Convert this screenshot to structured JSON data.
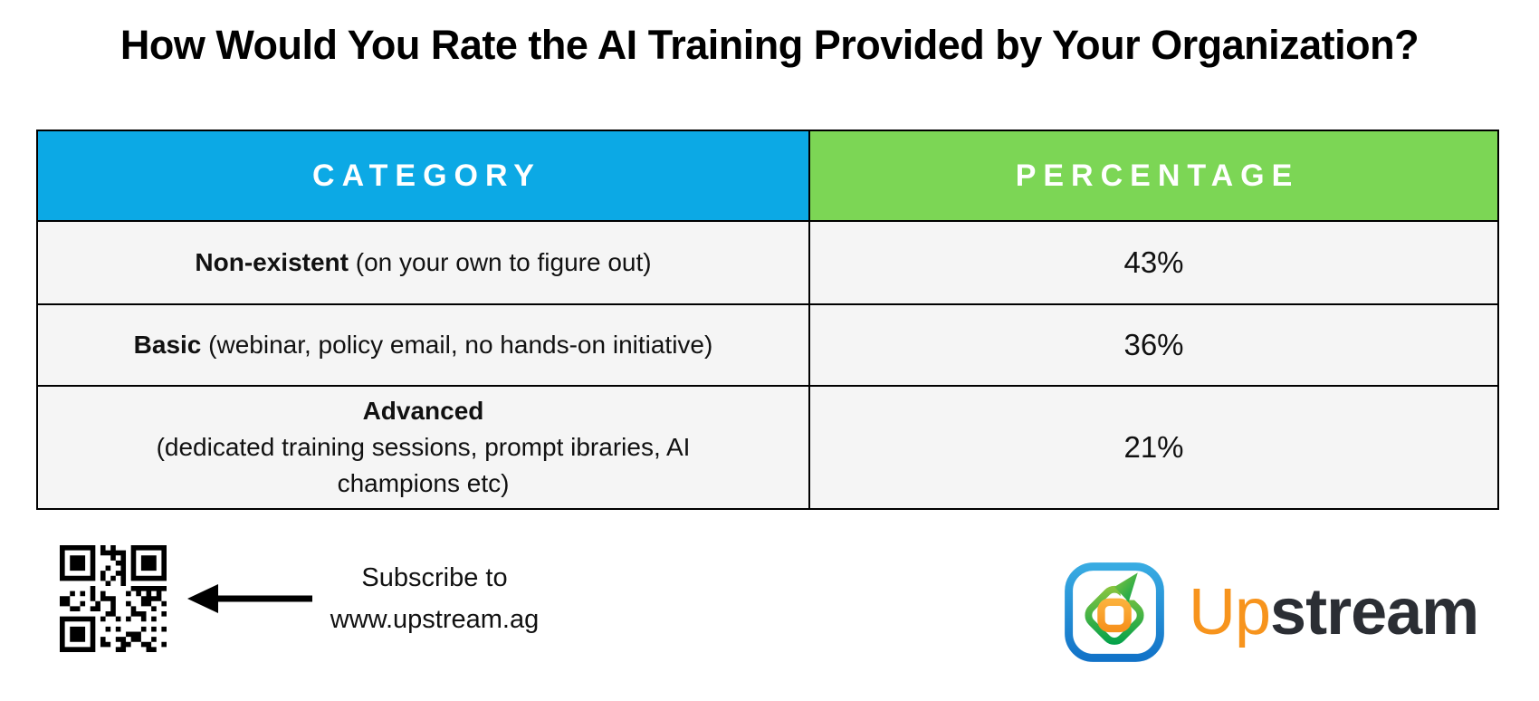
{
  "title": "How Would You Rate the AI Training Provided by Your Organization?",
  "colors": {
    "header_category_bg": "#0CA9E5",
    "header_percentage_bg": "#7CD655",
    "header_text": "#FFFFFF",
    "row_bg": "#F5F5F5",
    "table_border": "#000000",
    "logo_orange": "#F7941D",
    "logo_dark": "#2B2E34",
    "logo_blue_frame": "#2196DD",
    "logo_green": "#4CAF3E"
  },
  "table": {
    "columns": [
      {
        "label": "CATEGORY",
        "bg": "#0CA9E5"
      },
      {
        "label": "PERCENTAGE",
        "bg": "#7CD655"
      }
    ],
    "rows": [
      {
        "label_bold": "Non-existent",
        "label_rest": " (on your own to figure out)",
        "percentage": "43%"
      },
      {
        "label_bold": "Basic",
        "label_rest": " (webinar, policy email, no hands-on initiative)",
        "percentage": "36%"
      },
      {
        "label_bold": "Advanced",
        "label_rest": "(dedicated training sessions, prompt ibraries, AI champions etc)",
        "percentage": "21%"
      }
    ]
  },
  "footer": {
    "subscribe_line1": "Subscribe to",
    "subscribe_line2": "www.upstream.ag",
    "logo": {
      "text_orange": "Up",
      "text_dark": "stream"
    }
  },
  "chart_data": {
    "type": "table",
    "title": "How Would You Rate the AI Training Provided by Your Organization?",
    "columns": [
      "CATEGORY",
      "PERCENTAGE"
    ],
    "categories": [
      "Non-existent (on your own to figure out)",
      "Basic (webinar, policy email, no hands-on initiative)",
      "Advanced (dedicated training sessions, prompt ibraries, AI champions etc)"
    ],
    "values": [
      43,
      36,
      21
    ],
    "unit": "%"
  }
}
